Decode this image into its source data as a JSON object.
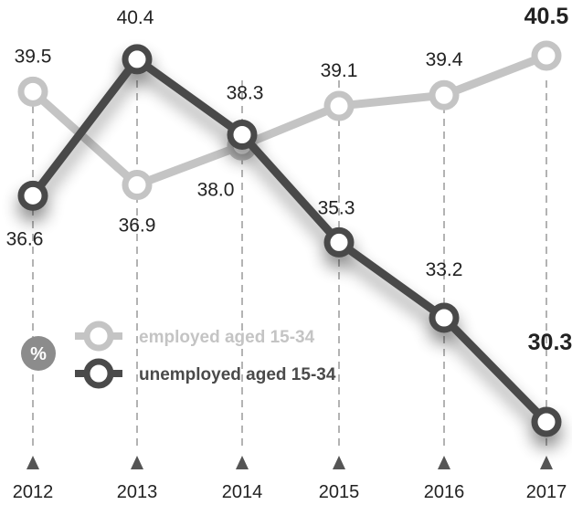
{
  "chart_data": {
    "type": "line",
    "unit_label": "%",
    "x": [
      "2012",
      "2013",
      "2014",
      "2015",
      "2016",
      "2017"
    ],
    "series": [
      {
        "name": "employed aged 15-34",
        "values": [
          39.5,
          36.9,
          38.0,
          39.1,
          39.4,
          40.5
        ],
        "labels": [
          "39.5",
          "36.9",
          "38.0",
          "39.1",
          "39.4",
          "40.5"
        ],
        "color": "#c4c4c4"
      },
      {
        "name": "unemployed aged 15-34",
        "values": [
          36.6,
          40.4,
          38.3,
          35.3,
          33.2,
          30.3
        ],
        "labels": [
          "36.6",
          "40.4",
          "38.3",
          "35.3",
          "33.2",
          "30.3"
        ],
        "color": "#4a4a4a"
      }
    ],
    "ylim": [
      30.3,
      40.5
    ],
    "grid": "dashed vertical",
    "legend_position": "bottom-left",
    "badge_color": "#8c8c8c"
  }
}
